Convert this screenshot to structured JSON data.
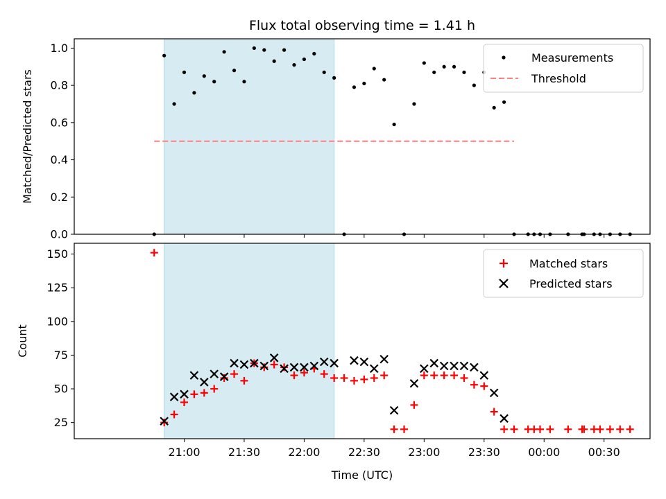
{
  "chart_data": [
    {
      "type": "scatter",
      "title": "Flux total observing time = 1.41 h",
      "ylabel": "Matched/Predicted stars",
      "ylim": [
        0,
        1.05
      ],
      "yticks": [
        0.0,
        0.2,
        0.4,
        0.6,
        0.8,
        1.0
      ],
      "ytick_labels": [
        "0.0",
        "0.2",
        "0.4",
        "0.6",
        "0.8",
        "1.0"
      ],
      "legend_position": "top-right",
      "highlight_span": {
        "start": "20:50",
        "end": "22:15",
        "color": "#add8e6"
      },
      "threshold": {
        "name": "Threshold",
        "value": 0.5,
        "x_start": "20:45",
        "x_end": "23:45",
        "color": "#ff7f7f"
      },
      "series": [
        {
          "name": "Measurements",
          "color": "#000000",
          "x": [
            "20:45",
            "20:50",
            "20:55",
            "21:00",
            "21:05",
            "21:10",
            "21:15",
            "21:20",
            "21:25",
            "21:30",
            "21:35",
            "21:40",
            "21:45",
            "21:50",
            "21:55",
            "22:00",
            "22:05",
            "22:10",
            "22:15",
            "22:20",
            "22:25",
            "22:30",
            "22:35",
            "22:40",
            "22:45",
            "22:50",
            "22:55",
            "23:00",
            "23:05",
            "23:10",
            "23:15",
            "23:20",
            "23:25",
            "23:30",
            "23:35",
            "23:40",
            "23:45",
            "23:52",
            "23:55",
            "23:58",
            "00:03",
            "00:12",
            "00:19",
            "00:20",
            "00:25",
            "00:28",
            "00:33",
            "00:38",
            "00:43"
          ],
          "y": [
            0,
            0.96,
            0.7,
            0.87,
            0.76,
            0.85,
            0.82,
            0.98,
            0.88,
            0.82,
            1.0,
            0.99,
            0.93,
            0.99,
            0.91,
            0.94,
            0.97,
            0.87,
            0.84,
            0,
            0.79,
            0.81,
            0.89,
            0.83,
            0.59,
            0,
            0.7,
            0.92,
            0.87,
            0.9,
            0.9,
            0.87,
            0.8,
            0.87,
            0.68,
            0.71,
            0,
            0,
            0,
            0,
            0,
            0,
            0,
            0,
            0,
            0,
            0,
            0,
            0
          ]
        }
      ]
    },
    {
      "type": "scatter",
      "xlabel": "Time (UTC)",
      "ylabel": "Count",
      "ylim": [
        13,
        158
      ],
      "yticks": [
        25,
        50,
        75,
        100,
        125,
        150
      ],
      "ytick_labels": [
        "25",
        "50",
        "75",
        "100",
        "125",
        "150"
      ],
      "xticks": [
        "21:00",
        "21:30",
        "22:00",
        "22:30",
        "23:00",
        "23:30",
        "00:00",
        "00:30"
      ],
      "legend_position": "top-right",
      "highlight_span": {
        "start": "20:50",
        "end": "22:15",
        "color": "#add8e6"
      },
      "series": [
        {
          "name": "Matched stars",
          "marker": "plus",
          "color": "#ff0000",
          "x": [
            "20:45",
            "20:50",
            "20:55",
            "21:00",
            "21:05",
            "21:10",
            "21:15",
            "21:20",
            "21:25",
            "21:30",
            "21:35",
            "21:40",
            "21:45",
            "21:50",
            "21:55",
            "22:00",
            "22:05",
            "22:10",
            "22:15",
            "22:20",
            "22:25",
            "22:30",
            "22:35",
            "22:40",
            "22:45",
            "22:50",
            "22:55",
            "23:00",
            "23:05",
            "23:10",
            "23:15",
            "23:20",
            "23:25",
            "23:30",
            "23:35",
            "23:40",
            "23:45",
            "23:52",
            "23:55",
            "23:58",
            "00:03",
            "00:12",
            "00:19",
            "00:20",
            "00:25",
            "00:28",
            "00:33",
            "00:38",
            "00:43"
          ],
          "y": [
            151,
            25,
            31,
            40,
            46,
            47,
            50,
            58,
            61,
            56,
            69,
            66,
            68,
            66,
            60,
            62,
            65,
            61,
            58,
            58,
            56,
            57,
            58,
            60,
            20,
            20,
            38,
            60,
            60,
            60,
            60,
            58,
            53,
            52,
            33,
            20,
            20,
            20,
            20,
            20,
            20,
            20,
            20,
            20,
            20,
            20,
            20,
            20,
            20
          ]
        },
        {
          "name": "Predicted stars",
          "marker": "x",
          "color": "#000000",
          "x": [
            "20:50",
            "20:55",
            "21:00",
            "21:05",
            "21:10",
            "21:15",
            "21:20",
            "21:25",
            "21:30",
            "21:35",
            "21:40",
            "21:45",
            "21:50",
            "21:55",
            "22:00",
            "22:05",
            "22:10",
            "22:15",
            "22:25",
            "22:30",
            "22:35",
            "22:40",
            "22:45",
            "22:55",
            "23:00",
            "23:05",
            "23:10",
            "23:15",
            "23:20",
            "23:25",
            "23:30",
            "23:35",
            "23:40"
          ],
          "y": [
            26,
            44,
            46,
            60,
            55,
            61,
            59,
            69,
            68,
            69,
            67,
            73,
            65,
            66,
            66,
            67,
            70,
            69,
            71,
            70,
            65,
            72,
            34,
            54,
            65,
            69,
            67,
            67,
            67,
            66,
            60,
            47,
            28
          ]
        }
      ]
    }
  ]
}
